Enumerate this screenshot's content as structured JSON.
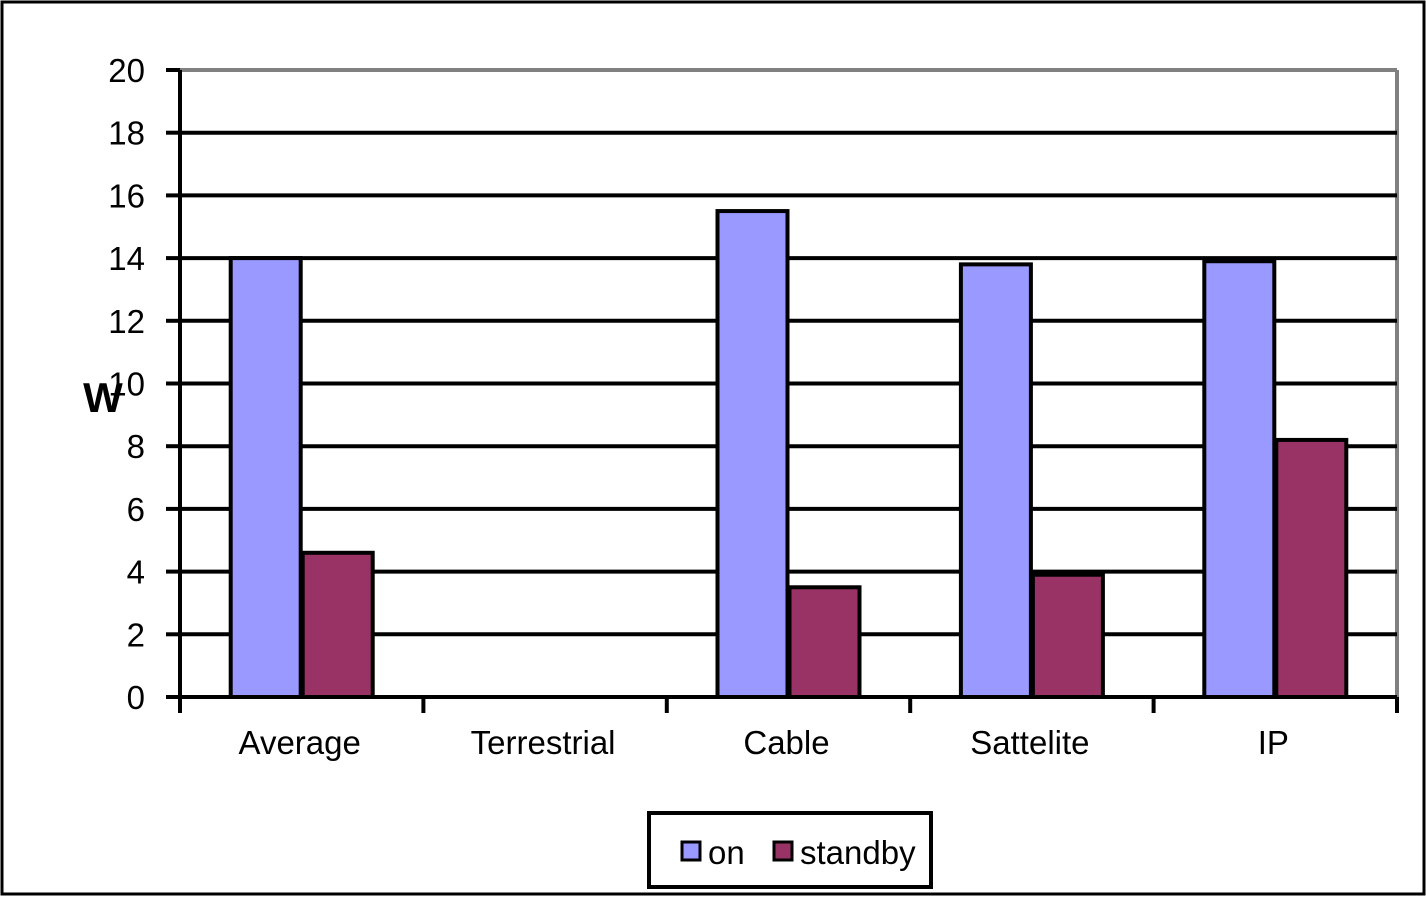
{
  "chart_data": {
    "type": "bar",
    "title": "",
    "xlabel": "",
    "ylabel": "W",
    "ylim": [
      0,
      20
    ],
    "yticks": [
      0,
      2,
      4,
      6,
      8,
      10,
      12,
      14,
      16,
      18,
      20
    ],
    "grid": true,
    "legend_position": "bottom",
    "categories": [
      "Average",
      "Terrestrial",
      "Cable",
      "Sattelite",
      "IP"
    ],
    "series": [
      {
        "name": "on",
        "color": "#9999ff",
        "values": [
          14.0,
          null,
          15.5,
          13.8,
          13.9
        ]
      },
      {
        "name": "standby",
        "color": "#993366",
        "values": [
          4.6,
          null,
          3.5,
          3.9,
          8.2
        ]
      }
    ]
  }
}
